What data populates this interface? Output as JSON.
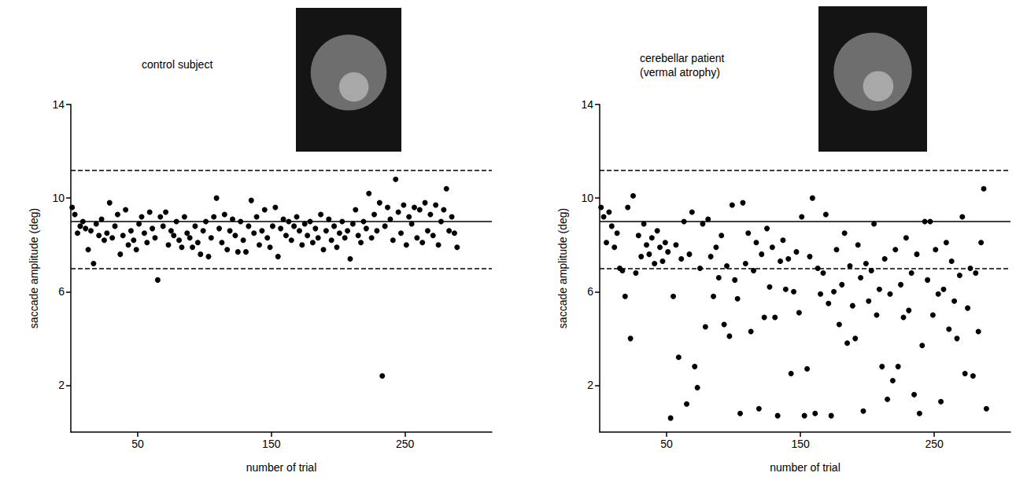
{
  "chart_data": [
    {
      "type": "scatter",
      "title": "control subject",
      "xlabel": "number of trial",
      "ylabel": "saccade amplitude (deg)",
      "color": "#000000",
      "marker": "circle",
      "grid": false,
      "xlim": [
        0,
        315
      ],
      "xticks": [
        50,
        150,
        250
      ],
      "ylim": [
        0,
        14
      ],
      "yticks": [
        2,
        6,
        10,
        14
      ],
      "reference_lines": [
        {
          "value": 9,
          "line_style": "solid"
        },
        {
          "value": 11.2,
          "line_style": "dashed"
        },
        {
          "value": 7,
          "line_style": "dashed"
        }
      ],
      "x": [
        1,
        3,
        5,
        7,
        9,
        11,
        13,
        15,
        17,
        19,
        21,
        23,
        25,
        27,
        29,
        31,
        33,
        35,
        37,
        39,
        41,
        43,
        45,
        47,
        49,
        51,
        53,
        55,
        57,
        59,
        61,
        63,
        65,
        67,
        69,
        71,
        73,
        75,
        77,
        79,
        81,
        83,
        85,
        87,
        89,
        91,
        93,
        95,
        97,
        99,
        101,
        103,
        105,
        107,
        109,
        111,
        113,
        115,
        117,
        119,
        121,
        123,
        125,
        127,
        129,
        131,
        133,
        135,
        137,
        139,
        141,
        143,
        145,
        147,
        149,
        151,
        153,
        155,
        157,
        159,
        161,
        163,
        165,
        167,
        169,
        171,
        173,
        175,
        177,
        179,
        181,
        183,
        185,
        187,
        189,
        191,
        193,
        195,
        197,
        199,
        201,
        203,
        205,
        207,
        209,
        211,
        213,
        215,
        217,
        219,
        221,
        223,
        225,
        227,
        229,
        231,
        233,
        235,
        237,
        239,
        241,
        243,
        245,
        247,
        249,
        251,
        253,
        255,
        257,
        259,
        261,
        263,
        265,
        267,
        269,
        271,
        273,
        275,
        277,
        279,
        281,
        283,
        285,
        287,
        289
      ],
      "values": [
        9.6,
        9.3,
        8.5,
        8.8,
        9.0,
        8.7,
        7.8,
        8.6,
        7.2,
        8.9,
        8.4,
        9.1,
        8.2,
        8.5,
        9.8,
        8.3,
        8.8,
        9.3,
        7.6,
        8.4,
        9.5,
        8.0,
        8.6,
        8.2,
        7.8,
        8.9,
        9.2,
        8.5,
        8.1,
        9.4,
        8.7,
        8.3,
        6.5,
        9.2,
        8.8,
        9.4,
        8.0,
        8.6,
        8.4,
        9.0,
        8.2,
        7.9,
        9.2,
        8.5,
        8.3,
        7.9,
        8.8,
        8.1,
        7.6,
        8.6,
        9.0,
        7.5,
        8.3,
        9.2,
        10.0,
        8.7,
        8.1,
        9.3,
        7.8,
        8.6,
        9.1,
        8.4,
        7.7,
        9.0,
        8.2,
        7.7,
        8.8,
        9.9,
        8.5,
        9.2,
        8.0,
        8.6,
        9.5,
        8.3,
        7.9,
        8.8,
        9.6,
        7.5,
        8.7,
        9.1,
        8.4,
        9.0,
        8.2,
        8.8,
        9.2,
        8.6,
        8.0,
        8.9,
        8.4,
        9.0,
        8.1,
        8.7,
        8.3,
        9.3,
        7.8,
        8.6,
        9.1,
        8.2,
        8.8,
        7.9,
        8.5,
        9.0,
        8.3,
        8.6,
        7.4,
        8.9,
        9.5,
        8.4,
        8.1,
        9.0,
        8.7,
        10.2,
        8.3,
        9.3,
        8.6,
        9.8,
        2.4,
        8.8,
        9.6,
        9.1,
        8.2,
        10.8,
        9.4,
        8.5,
        9.7,
        8.0,
        9.2,
        8.9,
        9.6,
        8.3,
        9.5,
        8.1,
        9.8,
        8.6,
        9.3,
        8.4,
        9.7,
        8.0,
        9.0,
        9.5,
        10.4,
        8.6,
        9.2,
        8.5,
        7.9
      ]
    },
    {
      "type": "scatter",
      "title": "cerebellar patient\n(vermal atrophy)",
      "xlabel": "number of trial",
      "ylabel": "saccade amplitude (deg)",
      "color": "#000000",
      "marker": "circle",
      "grid": false,
      "xlim": [
        0,
        307
      ],
      "xticks": [
        50,
        150,
        250
      ],
      "ylim": [
        0,
        14
      ],
      "yticks": [
        2,
        6,
        10,
        14
      ],
      "reference_lines": [
        {
          "value": 9,
          "line_style": "solid"
        },
        {
          "value": 11.2,
          "line_style": "dashed"
        },
        {
          "value": 7,
          "line_style": "dashed"
        }
      ],
      "x": [
        1,
        3,
        5,
        7,
        9,
        11,
        13,
        15,
        17,
        19,
        21,
        23,
        25,
        27,
        29,
        31,
        33,
        35,
        37,
        39,
        41,
        43,
        45,
        47,
        49,
        51,
        53,
        55,
        57,
        59,
        61,
        63,
        65,
        67,
        69,
        71,
        73,
        75,
        77,
        79,
        81,
        83,
        85,
        87,
        89,
        91,
        93,
        95,
        97,
        99,
        101,
        103,
        105,
        107,
        109,
        111,
        113,
        115,
        117,
        119,
        121,
        123,
        125,
        127,
        129,
        131,
        133,
        135,
        137,
        139,
        141,
        143,
        145,
        147,
        149,
        151,
        153,
        155,
        157,
        159,
        161,
        163,
        165,
        167,
        169,
        171,
        173,
        175,
        177,
        179,
        181,
        183,
        185,
        187,
        189,
        191,
        193,
        195,
        197,
        199,
        201,
        203,
        205,
        207,
        209,
        211,
        213,
        215,
        217,
        219,
        221,
        223,
        225,
        227,
        229,
        231,
        233,
        235,
        237,
        239,
        241,
        243,
        245,
        247,
        249,
        251,
        253,
        255,
        257,
        259,
        261,
        263,
        265,
        267,
        269,
        271,
        273,
        275,
        277,
        279,
        281,
        283,
        285,
        287,
        289
      ],
      "values": [
        9.6,
        9.2,
        8.1,
        9.4,
        8.8,
        7.9,
        8.5,
        7.0,
        6.9,
        5.8,
        9.6,
        4.0,
        10.1,
        6.8,
        8.4,
        7.5,
        8.9,
        8.0,
        7.6,
        8.3,
        7.2,
        8.6,
        7.9,
        7.3,
        8.1,
        7.7,
        0.6,
        5.8,
        8.0,
        3.2,
        7.4,
        9.0,
        1.2,
        7.6,
        9.4,
        2.8,
        1.9,
        7.0,
        8.9,
        4.5,
        9.1,
        7.5,
        5.8,
        7.9,
        6.6,
        8.4,
        4.6,
        7.1,
        4.1,
        9.7,
        6.5,
        5.7,
        0.8,
        9.8,
        7.2,
        8.5,
        4.3,
        6.9,
        8.1,
        1.0,
        7.6,
        4.9,
        8.7,
        6.2,
        7.9,
        4.9,
        0.7,
        7.3,
        8.2,
        6.1,
        7.4,
        2.5,
        6.0,
        7.7,
        5.1,
        9.2,
        0.7,
        2.7,
        7.5,
        10.0,
        0.8,
        7.0,
        5.9,
        6.8,
        9.3,
        5.5,
        0.7,
        6.0,
        7.8,
        4.6,
        6.3,
        8.5,
        3.8,
        7.1,
        5.4,
        4.0,
        8.0,
        6.6,
        0.9,
        7.2,
        5.6,
        6.9,
        8.9,
        5.0,
        6.1,
        2.8,
        7.4,
        1.4,
        5.9,
        2.2,
        7.8,
        2.8,
        6.3,
        4.9,
        8.3,
        5.2,
        6.8,
        1.6,
        7.6,
        0.8,
        3.7,
        9.0,
        6.5,
        9.0,
        5.0,
        7.8,
        5.9,
        1.3,
        6.1,
        8.1,
        4.4,
        7.3,
        5.6,
        4.0,
        6.7,
        9.2,
        2.5,
        5.3,
        7.0,
        2.4,
        6.8,
        4.3,
        8.1,
        10.4,
        1.0
      ]
    }
  ]
}
